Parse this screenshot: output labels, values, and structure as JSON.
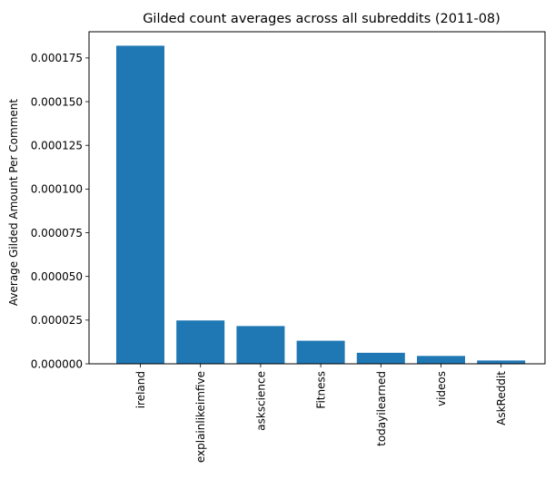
{
  "chart_data": {
    "type": "bar",
    "title": "Gilded count averages across all subreddits (2011-08)",
    "xlabel": "",
    "ylabel": "Average Gilded Amount Per Comment",
    "categories": [
      "ireland",
      "explainlikeimfive",
      "askscience",
      "Fitness",
      "todayilearned",
      "videos",
      "AskReddit"
    ],
    "values": [
      0.000182,
      2.48e-05,
      2.16e-05,
      1.32e-05,
      6.3e-06,
      4.5e-06,
      1.9e-06
    ],
    "ylim": [
      0,
      0.00019
    ],
    "yticks": [
      "0.000000",
      "0.000025",
      "0.000050",
      "0.000075",
      "0.000100",
      "0.000125",
      "0.000150",
      "0.000175"
    ],
    "bar_color": "#1f77b4",
    "grid": false,
    "legend": "none"
  }
}
